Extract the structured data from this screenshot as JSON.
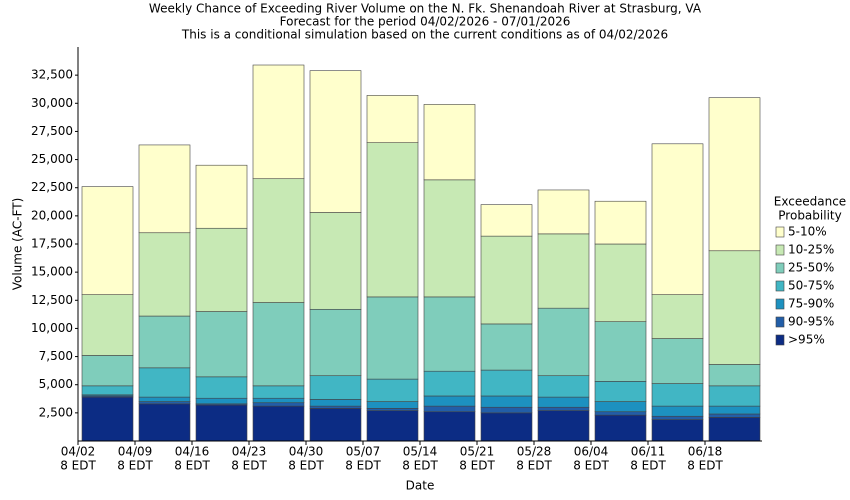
{
  "chart_data": {
    "type": "stacked_bar",
    "title": "Weekly Chance of Exceeding River Volume on the N. Fk. Shenandoah River at Strasburg, VA",
    "subtitle": [
      "Forecast for the period 04/02/2026 - 07/01/2026",
      "This is a conditional simulation based on the current conditions as of 04/02/2026"
    ],
    "x_label": "Date",
    "y_label": "Volume (AC-FT)",
    "categories": [
      "04/02",
      "04/09",
      "04/16",
      "04/23",
      "04/30",
      "05/07",
      "05/14",
      "05/21",
      "05/28",
      "06/04",
      "06/11",
      "06/18"
    ],
    "x_tick_sublabels": [
      "8 EDT",
      "8 EDT",
      "8 EDT",
      "8 EDT",
      "8 EDT",
      "8 EDT",
      "8 EDT",
      "8 EDT",
      "8 EDT",
      "8 EDT",
      "8 EDT",
      "8 EDT"
    ],
    "legend_title": [
      "Exceedance",
      "Probability"
    ],
    "ylim": [
      0,
      35000
    ],
    "yticks": [
      {
        "value": 2500,
        "label": "2,500"
      },
      {
        "value": 5000,
        "label": "5,000"
      },
      {
        "value": 7500,
        "label": "7,500"
      },
      {
        "value": 10000,
        "label": "10,000"
      },
      {
        "value": 12500,
        "label": "12,500"
      },
      {
        "value": 15000,
        "label": "15,000"
      },
      {
        "value": 17500,
        "label": "17,500"
      },
      {
        "value": 20000,
        "label": "20,000"
      },
      {
        "value": 22500,
        "label": "22,500"
      },
      {
        "value": 25000,
        "label": "25,000"
      },
      {
        "value": 27500,
        "label": "27,500"
      },
      {
        "value": 30000,
        "label": "30,000"
      },
      {
        "value": 32500,
        "label": "32,500"
      }
    ],
    "series": [
      {
        "name": ">95%",
        "color": "#0c2c84",
        "values": [
          3900,
          3300,
          3200,
          3100,
          2900,
          2700,
          2600,
          2500,
          2700,
          2300,
          1900,
          2100
        ]
      },
      {
        "name": "90-95%",
        "color": "#225ea8",
        "values": [
          100,
          200,
          100,
          300,
          200,
          200,
          500,
          500,
          300,
          300,
          300,
          300
        ]
      },
      {
        "name": "75-90%",
        "color": "#1d91c0",
        "values": [
          100,
          400,
          500,
          400,
          600,
          600,
          900,
          1000,
          900,
          900,
          900,
          700
        ]
      },
      {
        "name": "50-75%",
        "color": "#41b6c4",
        "values": [
          800,
          2600,
          1900,
          1100,
          2100,
          2000,
          2200,
          2300,
          1900,
          1800,
          2000,
          1800
        ]
      },
      {
        "name": "25-50%",
        "color": "#7fcdbb",
        "values": [
          2700,
          4600,
          5800,
          7400,
          5900,
          7300,
          6600,
          4100,
          6000,
          5300,
          4000,
          1900
        ]
      },
      {
        "name": "10-25%",
        "color": "#c7e9b4",
        "values": [
          5400,
          7400,
          7400,
          11000,
          8600,
          13700,
          10400,
          7800,
          6600,
          6900,
          3900,
          10100
        ]
      },
      {
        "name": "5-10%",
        "color": "#ffffcc",
        "values": [
          9600,
          7800,
          5600,
          10100,
          12600,
          4200,
          6700,
          2800,
          3900,
          3800,
          13400,
          13600
        ]
      }
    ]
  }
}
